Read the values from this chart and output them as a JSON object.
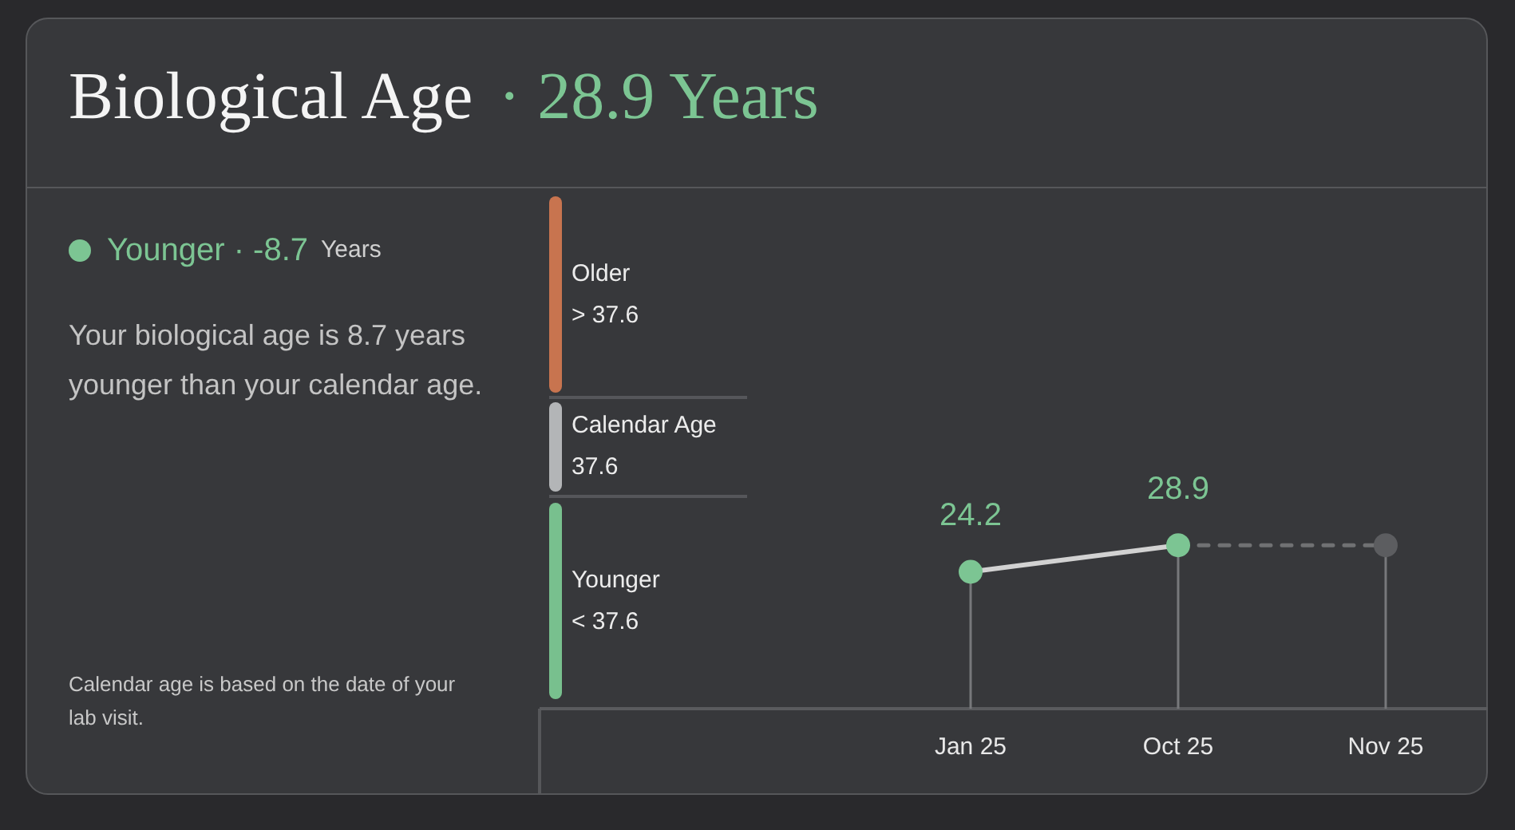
{
  "chart_data": {
    "type": "line",
    "title": "Biological Age",
    "subtitle": "· 28.9 Years",
    "categories": [
      "Jan 25",
      "Oct 25",
      "Nov 25"
    ],
    "series": [
      {
        "type": "line",
        "color": "#d2d2d2",
        "marker": "none",
        "values": [
          24.2,
          28.9,
          null
        ]
      },
      {
        "type": "line",
        "color": "#707173",
        "line_style": "dashed",
        "marker": "none",
        "values": [
          null,
          28.9,
          28.9
        ]
      },
      {
        "type": "lollipop",
        "colors": [
          "#7cc593",
          "#7cc593",
          "#5c5d60"
        ],
        "marker": "circle",
        "values": [
          24.2,
          28.9,
          28.9
        ],
        "value_labels": [
          "24.2",
          "28.9",
          null
        ]
      }
    ],
    "ylim": [
      0,
      92
    ],
    "tick_labels": "x",
    "annotations": [
      "Younger · -8.7",
      "Years",
      "Your biological age is 8.7 years younger than your calendar age.",
      "Calendar age is based on the date of your lab visit.",
      "Older\n> 37.6",
      "Calendar Age\n37.6",
      "Younger\n< 37.6"
    ]
  }
}
